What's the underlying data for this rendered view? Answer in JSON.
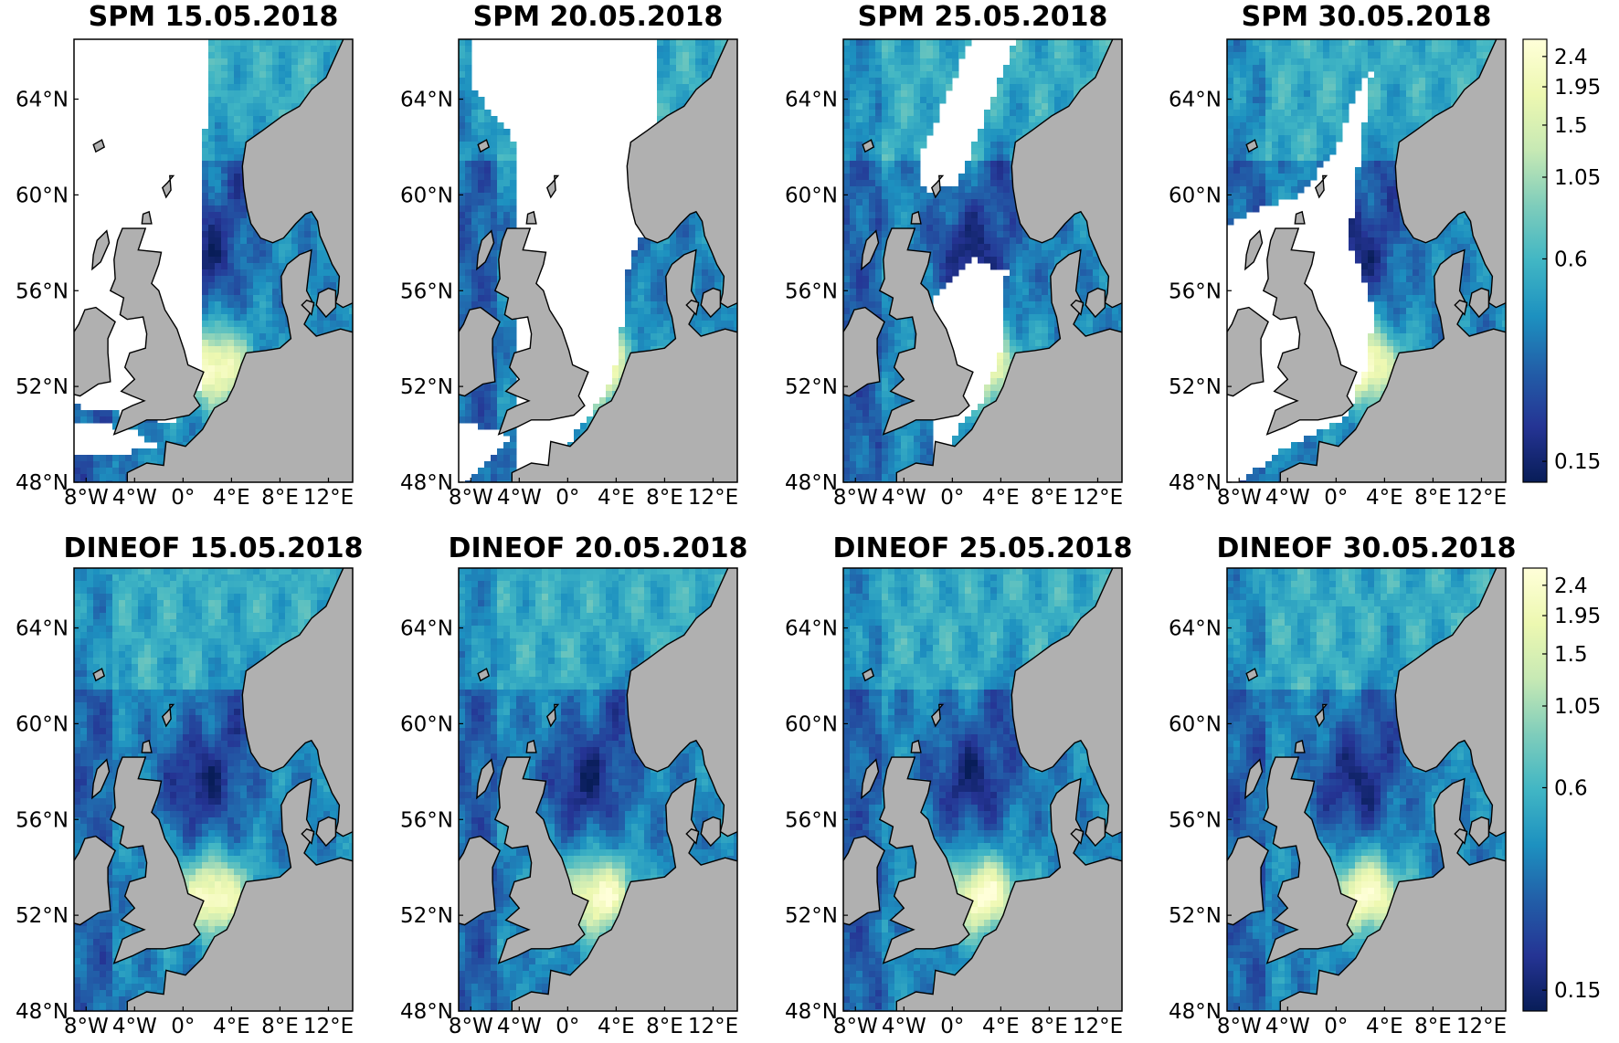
{
  "chart_data": {
    "type": "map",
    "panels": [
      {
        "title": "SPM 15.05.2018",
        "kind": "observed",
        "row": "top",
        "col": 0
      },
      {
        "title": "SPM 20.05.2018",
        "kind": "observed",
        "row": "top",
        "col": 1
      },
      {
        "title": "SPM 25.05.2018",
        "kind": "observed",
        "row": "top",
        "col": 2
      },
      {
        "title": "SPM 30.05.2018",
        "kind": "observed",
        "row": "top",
        "col": 3
      },
      {
        "title": "DINEOF 15.05.2018",
        "kind": "reconstructed",
        "row": "bottom",
        "col": 0
      },
      {
        "title": "DINEOF 20.05.2018",
        "kind": "reconstructed",
        "row": "bottom",
        "col": 1
      },
      {
        "title": "DINEOF 25.05.2018",
        "kind": "reconstructed",
        "row": "bottom",
        "col": 2
      },
      {
        "title": "DINEOF 30.05.2018",
        "kind": "reconstructed",
        "row": "bottom",
        "col": 3
      }
    ],
    "lat_ticks": [
      {
        "value": 48,
        "label": "48°N"
      },
      {
        "value": 52,
        "label": "52°N"
      },
      {
        "value": 56,
        "label": "56°N"
      },
      {
        "value": 60,
        "label": "60°N"
      },
      {
        "value": 64,
        "label": "64°N"
      }
    ],
    "lon_ticks": [
      {
        "value": -8,
        "label": "8°W"
      },
      {
        "value": -4,
        "label": "4°W"
      },
      {
        "value": 0,
        "label": "0°"
      },
      {
        "value": 4,
        "label": "4°E"
      },
      {
        "value": 8,
        "label": "8°E"
      },
      {
        "value": 12,
        "label": "12°E"
      }
    ],
    "lat_range": [
      48,
      66.5
    ],
    "lon_range": [
      -9,
      14
    ],
    "colorbar": {
      "scale": "log",
      "range": [
        0.13,
        2.7
      ],
      "ticks": [
        {
          "value": 0.15,
          "label": "0.15"
        },
        {
          "value": 0.6,
          "label": "0.6"
        },
        {
          "value": 1.05,
          "label": "1.05"
        },
        {
          "value": 1.5,
          "label": "1.5"
        },
        {
          "value": 1.95,
          "label": "1.95"
        },
        {
          "value": 2.4,
          "label": "2.4"
        }
      ],
      "colormap": [
        "#081d58",
        "#253494",
        "#225ea8",
        "#1d91c0",
        "#41b6c4",
        "#7fcdbb",
        "#c7e9b4",
        "#edf8b1",
        "#ffffd9"
      ]
    },
    "colors": {
      "land": "#b0b0b0",
      "coastline": "#000000",
      "missing": "#ffffff"
    }
  }
}
